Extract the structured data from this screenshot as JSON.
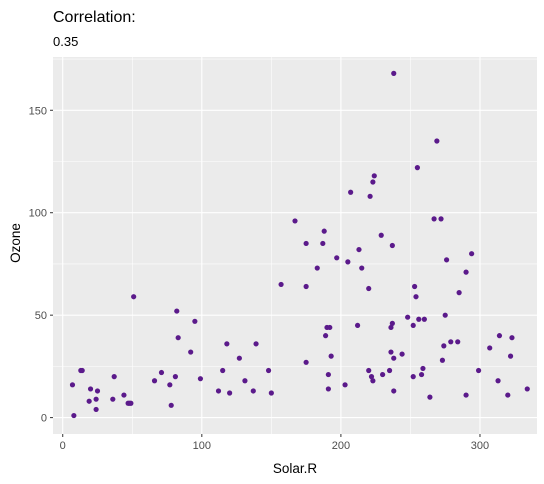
{
  "chart_data": {
    "type": "scatter",
    "title": "Correlation:",
    "subtitle": "0.35",
    "xlabel": "Solar.R",
    "ylabel": "Ozone",
    "xlim": [
      -7,
      341
    ],
    "ylim": [
      -8,
      176
    ],
    "x_ticks": [
      0,
      100,
      200,
      300
    ],
    "y_ticks": [
      0,
      50,
      100,
      150
    ],
    "grid": true,
    "point_color": "#5b1a8b",
    "panel_background": "#ebebeb",
    "points": [
      {
        "x": 7,
        "y": 16
      },
      {
        "x": 8,
        "y": 1
      },
      {
        "x": 13,
        "y": 23
      },
      {
        "x": 14,
        "y": 23
      },
      {
        "x": 19,
        "y": 8
      },
      {
        "x": 20,
        "y": 14
      },
      {
        "x": 24,
        "y": 9
      },
      {
        "x": 24,
        "y": 4
      },
      {
        "x": 25,
        "y": 13
      },
      {
        "x": 36,
        "y": 9
      },
      {
        "x": 37,
        "y": 20
      },
      {
        "x": 44,
        "y": 11
      },
      {
        "x": 47,
        "y": 7
      },
      {
        "x": 48,
        "y": 7
      },
      {
        "x": 49,
        "y": 7
      },
      {
        "x": 51,
        "y": 59
      },
      {
        "x": 66,
        "y": 18
      },
      {
        "x": 71,
        "y": 22
      },
      {
        "x": 77,
        "y": 16
      },
      {
        "x": 78,
        "y": 6
      },
      {
        "x": 81,
        "y": 20
      },
      {
        "x": 82,
        "y": 52
      },
      {
        "x": 83,
        "y": 39
      },
      {
        "x": 92,
        "y": 32
      },
      {
        "x": 95,
        "y": 47
      },
      {
        "x": 99,
        "y": 19
      },
      {
        "x": 112,
        "y": 13
      },
      {
        "x": 115,
        "y": 23
      },
      {
        "x": 118,
        "y": 36
      },
      {
        "x": 120,
        "y": 12
      },
      {
        "x": 127,
        "y": 29
      },
      {
        "x": 131,
        "y": 18
      },
      {
        "x": 137,
        "y": 13
      },
      {
        "x": 139,
        "y": 36
      },
      {
        "x": 148,
        "y": 23
      },
      {
        "x": 150,
        "y": 12
      },
      {
        "x": 157,
        "y": 65
      },
      {
        "x": 167,
        "y": 96
      },
      {
        "x": 175,
        "y": 27
      },
      {
        "x": 175,
        "y": 85
      },
      {
        "x": 175,
        "y": 64
      },
      {
        "x": 183,
        "y": 73
      },
      {
        "x": 187,
        "y": 85
      },
      {
        "x": 188,
        "y": 91
      },
      {
        "x": 189,
        "y": 40
      },
      {
        "x": 190,
        "y": 44
      },
      {
        "x": 191,
        "y": 14
      },
      {
        "x": 191,
        "y": 21
      },
      {
        "x": 192,
        "y": 44
      },
      {
        "x": 193,
        "y": 30
      },
      {
        "x": 197,
        "y": 78
      },
      {
        "x": 203,
        "y": 16
      },
      {
        "x": 205,
        "y": 76
      },
      {
        "x": 207,
        "y": 110
      },
      {
        "x": 212,
        "y": 45
      },
      {
        "x": 213,
        "y": 82
      },
      {
        "x": 215,
        "y": 73
      },
      {
        "x": 220,
        "y": 63
      },
      {
        "x": 220,
        "y": 23
      },
      {
        "x": 221,
        "y": 108
      },
      {
        "x": 222,
        "y": 20
      },
      {
        "x": 223,
        "y": 115
      },
      {
        "x": 223,
        "y": 18
      },
      {
        "x": 224,
        "y": 118
      },
      {
        "x": 229,
        "y": 89
      },
      {
        "x": 230,
        "y": 21
      },
      {
        "x": 235,
        "y": 23
      },
      {
        "x": 236,
        "y": 32
      },
      {
        "x": 236,
        "y": 44
      },
      {
        "x": 237,
        "y": 46
      },
      {
        "x": 237,
        "y": 84
      },
      {
        "x": 238,
        "y": 168
      },
      {
        "x": 238,
        "y": 13
      },
      {
        "x": 238,
        "y": 29
      },
      {
        "x": 244,
        "y": 31
      },
      {
        "x": 248,
        "y": 49
      },
      {
        "x": 252,
        "y": 20
      },
      {
        "x": 252,
        "y": 45
      },
      {
        "x": 253,
        "y": 64
      },
      {
        "x": 254,
        "y": 59
      },
      {
        "x": 255,
        "y": 122
      },
      {
        "x": 256,
        "y": 48
      },
      {
        "x": 258,
        "y": 21
      },
      {
        "x": 259,
        "y": 24
      },
      {
        "x": 260,
        "y": 48
      },
      {
        "x": 264,
        "y": 10
      },
      {
        "x": 267,
        "y": 97
      },
      {
        "x": 269,
        "y": 135
      },
      {
        "x": 272,
        "y": 97
      },
      {
        "x": 273,
        "y": 28
      },
      {
        "x": 274,
        "y": 35
      },
      {
        "x": 275,
        "y": 50
      },
      {
        "x": 276,
        "y": 77
      },
      {
        "x": 279,
        "y": 37
      },
      {
        "x": 284,
        "y": 37
      },
      {
        "x": 285,
        "y": 61
      },
      {
        "x": 290,
        "y": 71
      },
      {
        "x": 290,
        "y": 11
      },
      {
        "x": 294,
        "y": 80
      },
      {
        "x": 299,
        "y": 23
      },
      {
        "x": 307,
        "y": 34
      },
      {
        "x": 313,
        "y": 18
      },
      {
        "x": 314,
        "y": 40
      },
      {
        "x": 320,
        "y": 11
      },
      {
        "x": 322,
        "y": 30
      },
      {
        "x": 323,
        "y": 39
      },
      {
        "x": 334,
        "y": 14
      }
    ]
  }
}
